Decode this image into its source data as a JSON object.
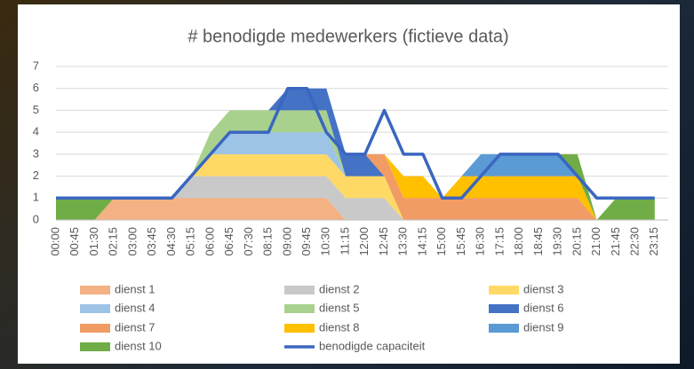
{
  "chart_data": {
    "type": "stacked-area",
    "title": "# benodigde medewerkers (fictieve data)",
    "categories": [
      "00:00",
      "00:45",
      "01:30",
      "02:15",
      "03:00",
      "03:45",
      "04:30",
      "05:15",
      "06:00",
      "06:45",
      "07:30",
      "08:15",
      "09:00",
      "09:45",
      "10:30",
      "11:15",
      "12:00",
      "12:45",
      "13:30",
      "14:15",
      "15:00",
      "15:45",
      "16:30",
      "17:15",
      "18:00",
      "18:45",
      "19:30",
      "20:15",
      "21:00",
      "21:45",
      "22:30",
      "23:15"
    ],
    "series": [
      {
        "name": "dienst 1",
        "color": "#f4b183",
        "values": [
          0,
          0,
          0,
          1,
          1,
          1,
          1,
          1,
          1,
          1,
          1,
          1,
          1,
          1,
          1,
          0,
          0,
          0,
          0,
          0,
          0,
          0,
          0,
          0,
          0,
          0,
          0,
          0,
          0,
          0,
          0,
          0
        ]
      },
      {
        "name": "dienst 2",
        "color": "#c9c9c9",
        "values": [
          0,
          0,
          0,
          0,
          0,
          0,
          0,
          1,
          1,
          1,
          1,
          1,
          1,
          1,
          1,
          1,
          1,
          1,
          0,
          0,
          0,
          0,
          0,
          0,
          0,
          0,
          0,
          0,
          0,
          0,
          0,
          0
        ]
      },
      {
        "name": "dienst 3",
        "color": "#ffd966",
        "values": [
          0,
          0,
          0,
          0,
          0,
          0,
          0,
          0,
          1,
          1,
          1,
          1,
          1,
          1,
          1,
          1,
          1,
          1,
          0,
          0,
          0,
          0,
          0,
          0,
          0,
          0,
          0,
          0,
          0,
          0,
          0,
          0
        ]
      },
      {
        "name": "dienst 4",
        "color": "#9dc3e6",
        "values": [
          0,
          0,
          0,
          0,
          0,
          0,
          0,
          0,
          0,
          1,
          1,
          1,
          1,
          1,
          1,
          0,
          0,
          0,
          0,
          0,
          0,
          0,
          0,
          0,
          0,
          0,
          0,
          0,
          0,
          0,
          0,
          0
        ]
      },
      {
        "name": "dienst 5",
        "color": "#a9d18e",
        "values": [
          0,
          0,
          0,
          0,
          0,
          0,
          0,
          0,
          1,
          1,
          1,
          1,
          1,
          1,
          1,
          0,
          0,
          0,
          0,
          0,
          0,
          0,
          0,
          0,
          0,
          0,
          0,
          0,
          0,
          0,
          0,
          0
        ]
      },
      {
        "name": "dienst 6",
        "color": "#4472c4",
        "values": [
          0,
          0,
          0,
          0,
          0,
          0,
          0,
          0,
          0,
          0,
          0,
          0,
          1,
          1,
          1,
          1,
          1,
          0,
          0,
          0,
          0,
          0,
          0,
          0,
          0,
          0,
          0,
          0,
          0,
          0,
          0,
          0
        ]
      },
      {
        "name": "dienst 7",
        "color": "#f19c65",
        "values": [
          0,
          0,
          0,
          0,
          0,
          0,
          0,
          0,
          0,
          0,
          0,
          0,
          0,
          0,
          0,
          0,
          0,
          1,
          1,
          1,
          1,
          1,
          1,
          1,
          1,
          1,
          1,
          1,
          0,
          0,
          0,
          0
        ]
      },
      {
        "name": "dienst 8",
        "color": "#ffc000",
        "values": [
          0,
          0,
          0,
          0,
          0,
          0,
          0,
          0,
          0,
          0,
          0,
          0,
          0,
          0,
          0,
          0,
          0,
          0,
          1,
          1,
          0,
          1,
          1,
          1,
          1,
          1,
          1,
          1,
          0,
          0,
          0,
          0
        ]
      },
      {
        "name": "dienst 9",
        "color": "#5b9bd5",
        "values": [
          0,
          0,
          0,
          0,
          0,
          0,
          0,
          0,
          0,
          0,
          0,
          0,
          0,
          0,
          0,
          0,
          0,
          0,
          0,
          0,
          0,
          0,
          1,
          1,
          1,
          1,
          1,
          0,
          0,
          0,
          0,
          0
        ]
      },
      {
        "name": "dienst 10",
        "color": "#70ad47",
        "values": [
          1,
          1,
          1,
          0,
          0,
          0,
          0,
          0,
          0,
          0,
          0,
          0,
          0,
          0,
          0,
          0,
          0,
          0,
          0,
          0,
          0,
          0,
          0,
          0,
          0,
          0,
          0,
          1,
          0,
          1,
          1,
          1
        ]
      }
    ],
    "line": {
      "name": "benodigde capaciteit",
      "color": "#3a66c0",
      "values": [
        1,
        1,
        1,
        1,
        1,
        1,
        1,
        2,
        3,
        4,
        4,
        4,
        6,
        6,
        4,
        3,
        3,
        5,
        3,
        3,
        1,
        1,
        2,
        3,
        3,
        3,
        3,
        2,
        1,
        1,
        1,
        1
      ]
    },
    "ylim": [
      0,
      7
    ],
    "yticks": [
      0,
      1,
      2,
      3,
      4,
      5,
      6,
      7
    ],
    "grid": true
  }
}
